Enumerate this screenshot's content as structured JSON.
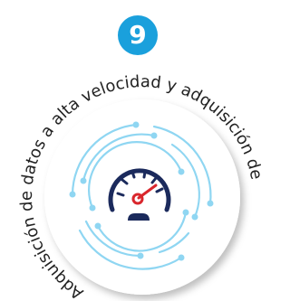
{
  "badge": {
    "number": "9"
  },
  "arc_text": "Adquisición de datos a alta velocidad y adquisición de"
}
